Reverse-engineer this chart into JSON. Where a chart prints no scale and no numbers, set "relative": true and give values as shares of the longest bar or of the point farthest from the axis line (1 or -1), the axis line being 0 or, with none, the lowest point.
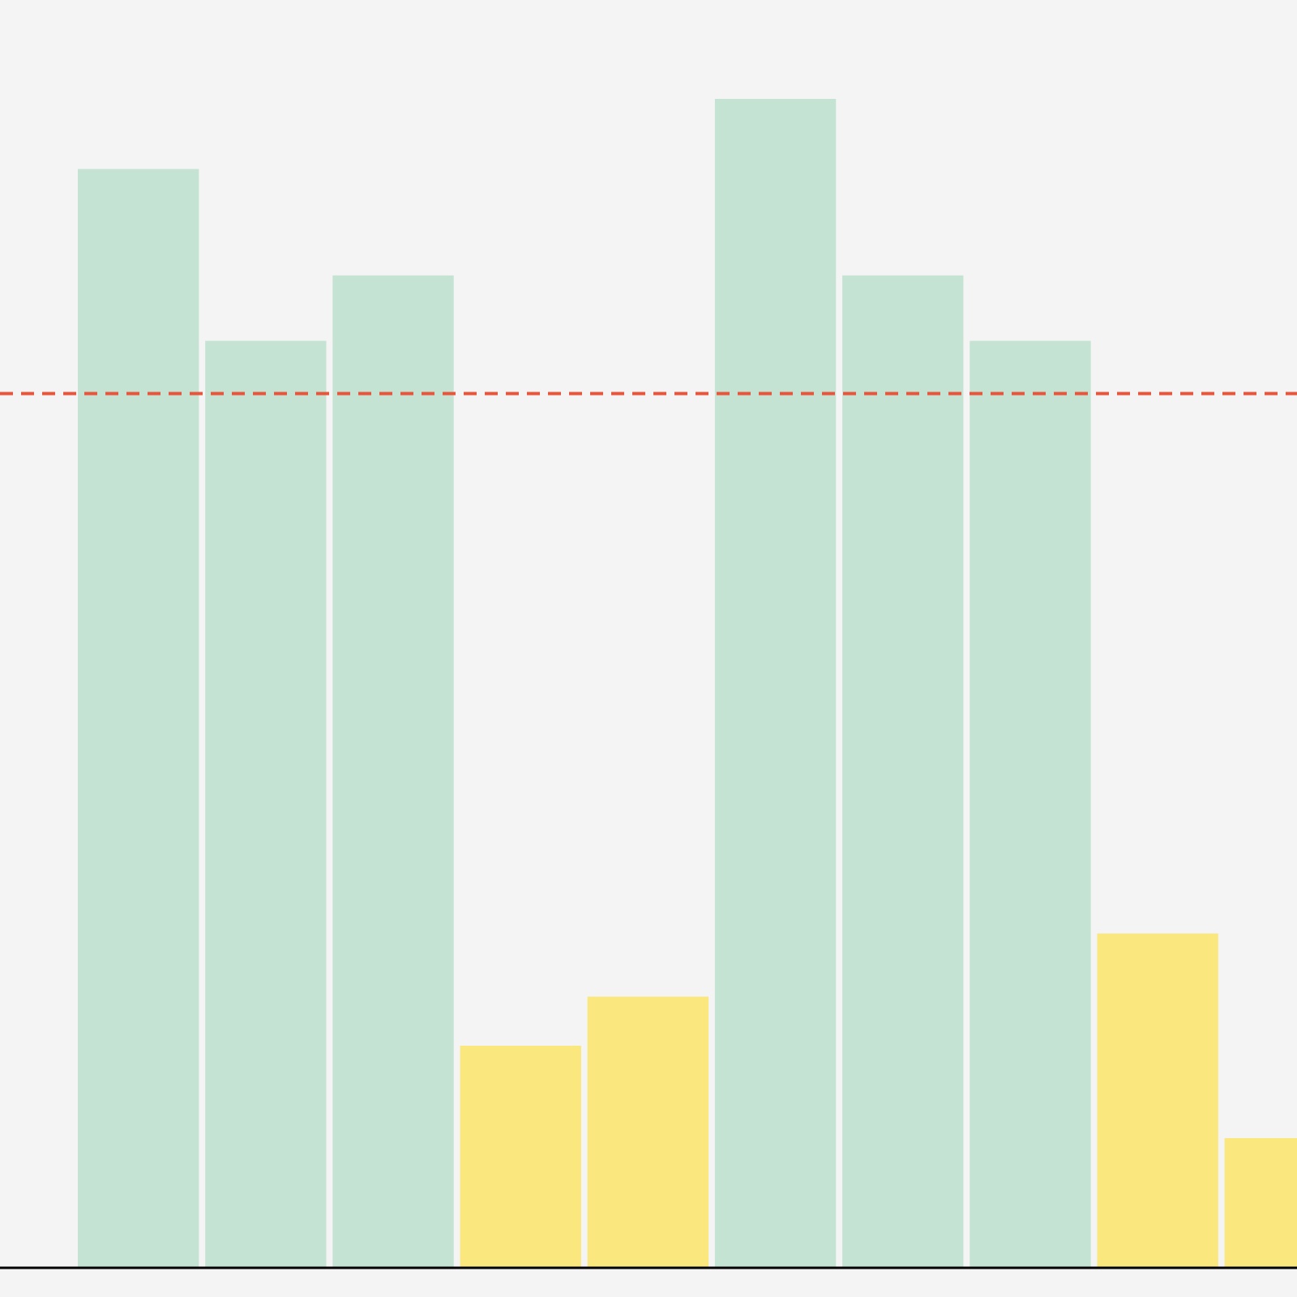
{
  "chart_data": {
    "type": "bar",
    "relative": true,
    "categories": [
      null,
      null,
      null,
      null,
      null,
      null,
      null,
      null,
      null,
      null
    ],
    "values": [
      0.94,
      0.793,
      0.849,
      0.19,
      0.232,
      1,
      0.849,
      0.793,
      0.286,
      0.111
    ],
    "colors": [
      "#c5e3d3",
      "#c5e3d3",
      "#c5e3d3",
      "#fae77d",
      "#fae77d",
      "#c5e3d3",
      "#c5e3d3",
      "#c5e3d3",
      "#fae77d",
      "#fae77d"
    ],
    "ref_lines": [
      {
        "axis": "y",
        "value": 0.748,
        "color": "#e8553a",
        "line_style": "dashed"
      }
    ]
  }
}
